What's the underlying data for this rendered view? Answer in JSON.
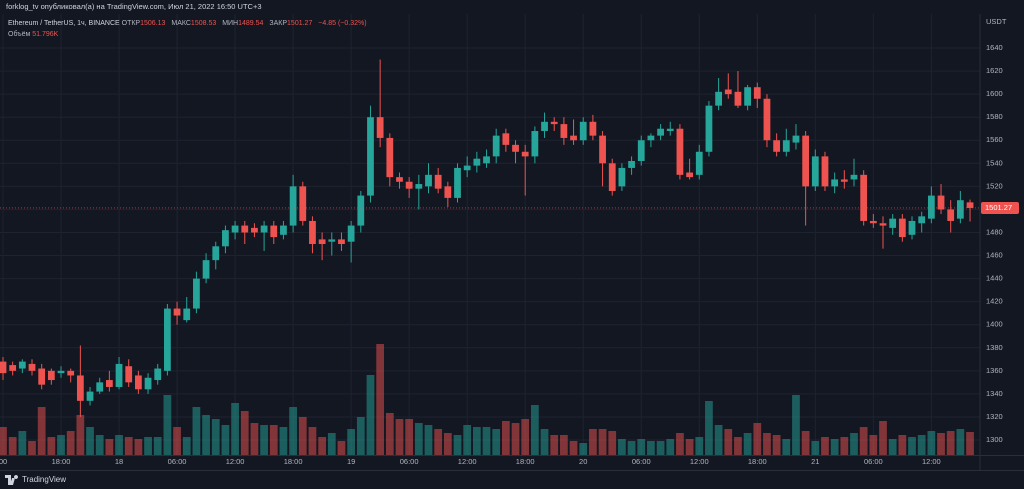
{
  "header": {
    "published": "forklog_tv опубликовал(а) на TradingView.com, Июл 21, 2022 16:50 UTC+3",
    "footer_brand": "TradingView"
  },
  "chart_data": {
    "type": "candlestick",
    "symbol": "Ethereum / TetherUS, 1ч, BINANCE",
    "labels": {
      "open": "ОТКР",
      "high": "МАКС",
      "low": "МИН",
      "close": "ЗАКР"
    },
    "change": "−4.85 (−0.32%)",
    "volume_title": "Объём",
    "volume_value_label": "51.796K",
    "currency": "USDT",
    "up_color": "#26a69a",
    "down_color": "#ef5350",
    "grid": true,
    "open": [
      1368,
      1365,
      1362,
      1366,
      1362,
      1360,
      1358,
      1360,
      1356,
      1334,
      1342,
      1352,
      1346,
      1364,
      1356,
      1344,
      1352,
      1360,
      1414,
      1404,
      1414,
      1440,
      1456,
      1468,
      1480,
      1486,
      1484,
      1480,
      1486,
      1478,
      1486,
      1520,
      1490,
      1474,
      1472,
      1474,
      1472,
      1486,
      1512,
      1580,
      1562,
      1528,
      1524,
      1518,
      1520,
      1530,
      1520,
      1510,
      1534,
      1538,
      1540,
      1546,
      1566,
      1556,
      1550,
      1546,
      1568,
      1576,
      1574,
      1564,
      1560,
      1576,
      1564,
      1540,
      1520,
      1536,
      1542,
      1560,
      1564,
      1568,
      1570,
      1532,
      1530,
      1550,
      1590,
      1604,
      1602,
      1590,
      1606,
      1596,
      1560,
      1550,
      1558,
      1564,
      1520,
      1546,
      1520,
      1526,
      1526,
      1530,
      1490,
      1488,
      1484,
      1492,
      1478,
      1488,
      1492,
      1512,
      1500,
      1492,
      1506.13
    ],
    "high": [
      1372,
      1368,
      1370,
      1370,
      1366,
      1362,
      1364,
      1362,
      1382,
      1346,
      1354,
      1360,
      1372,
      1370,
      1360,
      1358,
      1366,
      1418,
      1420,
      1424,
      1446,
      1462,
      1472,
      1486,
      1490,
      1490,
      1488,
      1490,
      1490,
      1490,
      1530,
      1524,
      1494,
      1480,
      1480,
      1480,
      1490,
      1516,
      1590,
      1630,
      1566,
      1532,
      1528,
      1530,
      1540,
      1536,
      1524,
      1540,
      1546,
      1550,
      1552,
      1570,
      1570,
      1560,
      1556,
      1572,
      1584,
      1580,
      1580,
      1578,
      1580,
      1582,
      1568,
      1544,
      1540,
      1546,
      1564,
      1566,
      1574,
      1576,
      1574,
      1544,
      1556,
      1594,
      1614,
      1618,
      1620,
      1608,
      1610,
      1600,
      1566,
      1570,
      1574,
      1568,
      1552,
      1550,
      1532,
      1534,
      1544,
      1534,
      1496,
      1494,
      1496,
      1496,
      1494,
      1498,
      1520,
      1522,
      1508,
      1516,
      1508.53
    ],
    "low": [
      1352,
      1356,
      1358,
      1356,
      1344,
      1348,
      1354,
      1350,
      1320,
      1330,
      1340,
      1342,
      1344,
      1346,
      1340,
      1340,
      1348,
      1356,
      1400,
      1402,
      1410,
      1436,
      1448,
      1462,
      1474,
      1470,
      1476,
      1464,
      1470,
      1474,
      1480,
      1486,
      1462,
      1456,
      1460,
      1464,
      1454,
      1480,
      1506,
      1554,
      1520,
      1518,
      1510,
      1500,
      1514,
      1514,
      1502,
      1506,
      1528,
      1532,
      1536,
      1540,
      1550,
      1540,
      1512,
      1540,
      1562,
      1568,
      1556,
      1556,
      1556,
      1560,
      1520,
      1512,
      1516,
      1530,
      1538,
      1554,
      1560,
      1564,
      1526,
      1526,
      1526,
      1546,
      1586,
      1596,
      1588,
      1586,
      1588,
      1554,
      1546,
      1546,
      1552,
      1486,
      1516,
      1516,
      1514,
      1518,
      1520,
      1486,
      1484,
      1466,
      1478,
      1472,
      1474,
      1480,
      1488,
      1496,
      1480,
      1488,
      1489.54
    ],
    "close": [
      1358,
      1360,
      1368,
      1360,
      1348,
      1352,
      1360,
      1356,
      1334,
      1342,
      1350,
      1346,
      1366,
      1350,
      1344,
      1354,
      1362,
      1414,
      1408,
      1414,
      1440,
      1456,
      1468,
      1482,
      1486,
      1480,
      1480,
      1486,
      1476,
      1486,
      1520,
      1490,
      1470,
      1470,
      1474,
      1470,
      1486,
      1512,
      1580,
      1562,
      1528,
      1524,
      1518,
      1522,
      1530,
      1518,
      1510,
      1536,
      1538,
      1544,
      1546,
      1564,
      1556,
      1550,
      1546,
      1568,
      1576,
      1574,
      1562,
      1560,
      1576,
      1564,
      1540,
      1516,
      1536,
      1542,
      1560,
      1564,
      1570,
      1570,
      1530,
      1528,
      1550,
      1590,
      1602,
      1600,
      1590,
      1606,
      1596,
      1560,
      1550,
      1560,
      1564,
      1520,
      1546,
      1520,
      1526,
      1524,
      1530,
      1490,
      1488,
      1486,
      1492,
      1476,
      1490,
      1494,
      1512,
      1500,
      1490,
      1508,
      1501.27
    ],
    "volume": [
      63,
      40.5,
      54,
      31.5,
      108,
      40.5,
      45,
      54,
      90,
      63,
      45,
      36,
      45,
      40.5,
      36,
      40.5,
      40.5,
      135,
      63,
      40.5,
      108,
      90,
      81,
      67.5,
      117,
      99,
      72,
      67.5,
      67.5,
      63,
      108,
      85.5,
      63,
      40.5,
      49.5,
      31.5,
      58.5,
      85.5,
      180,
      249.75,
      94.5,
      81,
      81,
      72,
      67.5,
      58.5,
      49.5,
      45,
      67.5,
      63,
      63,
      58.5,
      76.5,
      72,
      81,
      112.5,
      58.5,
      45,
      45,
      31.5,
      27,
      58.5,
      58.5,
      54,
      36,
      31.5,
      36,
      31.5,
      31.5,
      36,
      49.5,
      36,
      40.5,
      121.5,
      67.5,
      58.5,
      40.5,
      49.5,
      72,
      49.5,
      45,
      36,
      135,
      54,
      31.5,
      40.5,
      36,
      40.5,
      49.5,
      63,
      45,
      76.5,
      36,
      45,
      40.5,
      45,
      54,
      49.5,
      54,
      58.5,
      51.796
    ],
    "xlim": [
      -0.31,
      101.03
    ],
    "xticks": [
      {
        "value": 0,
        "label": "00"
      },
      {
        "value": 6,
        "label": "18:00"
      },
      {
        "value": 12,
        "label": "18"
      },
      {
        "value": 18,
        "label": "06:00"
      },
      {
        "value": 24,
        "label": "12:00"
      },
      {
        "value": 30,
        "label": "18:00"
      },
      {
        "value": 36,
        "label": "19"
      },
      {
        "value": 42,
        "label": "06:00"
      },
      {
        "value": 48,
        "label": "12:00"
      },
      {
        "value": 54,
        "label": "18:00"
      },
      {
        "value": 60,
        "label": "20"
      },
      {
        "value": 66,
        "label": "06:00"
      },
      {
        "value": 72,
        "label": "12:00"
      },
      {
        "value": 78,
        "label": "18:00"
      },
      {
        "value": 84,
        "label": "21"
      },
      {
        "value": 90,
        "label": "06:00"
      },
      {
        "value": 96,
        "label": "12:00"
      }
    ],
    "ylim": [
      1287,
      1669.5
    ],
    "yticks": [
      1300,
      1320,
      1340,
      1360,
      1380,
      1400,
      1420,
      1440,
      1460,
      1480,
      1500,
      1520,
      1540,
      1560,
      1580,
      1600,
      1620,
      1640
    ]
  }
}
